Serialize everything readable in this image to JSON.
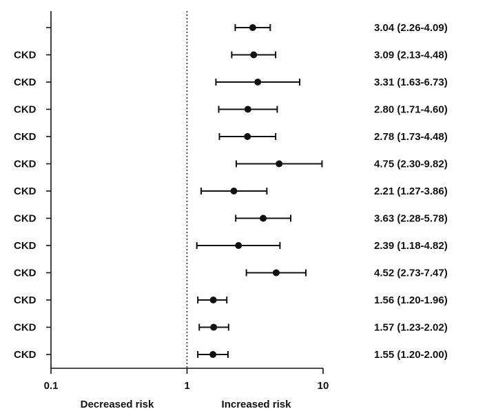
{
  "chart_data": {
    "type": "forest",
    "x_scale": "log",
    "xlim": [
      0.1,
      10
    ],
    "x_ticks": [
      0.1,
      1,
      10
    ],
    "x_tick_labels": [
      "0.1",
      "1",
      "10"
    ],
    "reference_line": 1,
    "left_caption": "Decreased risk",
    "right_caption": "Increased risk",
    "rows": [
      {
        "label": "",
        "estimate": 3.04,
        "lower": 2.26,
        "upper": 4.09,
        "text": "3.04 (2.26-4.09)"
      },
      {
        "label": "CKD",
        "estimate": 3.09,
        "lower": 2.13,
        "upper": 4.48,
        "text": "3.09 (2.13-4.48)"
      },
      {
        "label": "CKD",
        "estimate": 3.31,
        "lower": 1.63,
        "upper": 6.73,
        "text": "3.31 (1.63-6.73)"
      },
      {
        "label": "CKD",
        "estimate": 2.8,
        "lower": 1.71,
        "upper": 4.6,
        "text": "2.80 (1.71-4.60)"
      },
      {
        "label": "CKD",
        "estimate": 2.78,
        "lower": 1.73,
        "upper": 4.48,
        "text": "2.78 (1.73-4.48)"
      },
      {
        "label": "CKD",
        "estimate": 4.75,
        "lower": 2.3,
        "upper": 9.82,
        "text": "4.75 (2.30-9.82)"
      },
      {
        "label": "CKD",
        "estimate": 2.21,
        "lower": 1.27,
        "upper": 3.86,
        "text": "2.21 (1.27-3.86)"
      },
      {
        "label": "CKD",
        "estimate": 3.63,
        "lower": 2.28,
        "upper": 5.78,
        "text": "3.63 (2.28-5.78)"
      },
      {
        "label": "CKD",
        "estimate": 2.39,
        "lower": 1.18,
        "upper": 4.82,
        "text": "2.39 (1.18-4.82)"
      },
      {
        "label": "CKD",
        "estimate": 4.52,
        "lower": 2.73,
        "upper": 7.47,
        "text": "4.52 (2.73-7.47)"
      },
      {
        "label": "CKD",
        "estimate": 1.56,
        "lower": 1.2,
        "upper": 1.96,
        "text": "1.56 (1.20-1.96)"
      },
      {
        "label": "CKD",
        "estimate": 1.57,
        "lower": 1.23,
        "upper": 2.02,
        "text": "1.57 (1.23-2.02)"
      },
      {
        "label": "CKD",
        "estimate": 1.55,
        "lower": 1.2,
        "upper": 2.0,
        "text": "1.55 (1.20-2.00)"
      }
    ]
  },
  "colors": {
    "ink": "#111111",
    "background": "#ffffff"
  }
}
